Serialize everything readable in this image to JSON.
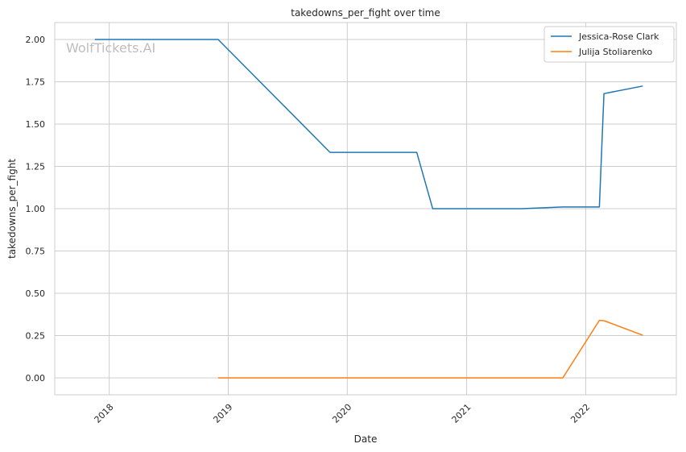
{
  "chart_data": {
    "type": "line",
    "title": "takedowns_per_fight over time",
    "xlabel": "Date",
    "ylabel": "takedowns_per_fight",
    "watermark": "WolfTickets.AI",
    "x_axis_type": "date",
    "xlim": [
      "2017-07-18",
      "2022-10-06"
    ],
    "ylim": [
      -0.1,
      2.1
    ],
    "x_ticks": [
      {
        "date": "2018-01-01",
        "label": "2018"
      },
      {
        "date": "2019-01-01",
        "label": "2019"
      },
      {
        "date": "2020-01-01",
        "label": "2020"
      },
      {
        "date": "2021-01-01",
        "label": "2021"
      },
      {
        "date": "2022-01-01",
        "label": "2022"
      }
    ],
    "y_ticks": [
      {
        "value": 0.0,
        "label": "0.00"
      },
      {
        "value": 0.25,
        "label": "0.25"
      },
      {
        "value": 0.5,
        "label": "0.50"
      },
      {
        "value": 0.75,
        "label": "0.75"
      },
      {
        "value": 1.0,
        "label": "1.00"
      },
      {
        "value": 1.25,
        "label": "1.25"
      },
      {
        "value": 1.5,
        "label": "1.50"
      },
      {
        "value": 1.75,
        "label": "1.75"
      },
      {
        "value": 2.0,
        "label": "2.00"
      }
    ],
    "grid": true,
    "legend_position": "top-right",
    "series": [
      {
        "name": "Jessica-Rose Clark",
        "color": "#1f77b4",
        "points": [
          {
            "x": "2017-11-18",
            "y": 2.0
          },
          {
            "x": "2018-12-01",
            "y": 2.0
          },
          {
            "x": "2019-11-09",
            "y": 1.333
          },
          {
            "x": "2020-08-01",
            "y": 1.333
          },
          {
            "x": "2020-09-19",
            "y": 1.0
          },
          {
            "x": "2021-06-19",
            "y": 1.0
          },
          {
            "x": "2021-10-23",
            "y": 1.01
          },
          {
            "x": "2022-02-12",
            "y": 1.01
          },
          {
            "x": "2022-02-26",
            "y": 1.68
          },
          {
            "x": "2022-06-25",
            "y": 1.725
          }
        ]
      },
      {
        "name": "Julija Stoliarenko",
        "color": "#ff7f0e",
        "points": [
          {
            "x": "2018-12-01",
            "y": 0.0
          },
          {
            "x": "2021-10-23",
            "y": 0.0
          },
          {
            "x": "2022-02-12",
            "y": 0.34
          },
          {
            "x": "2022-02-26",
            "y": 0.338
          },
          {
            "x": "2022-06-25",
            "y": 0.252
          }
        ]
      }
    ]
  }
}
